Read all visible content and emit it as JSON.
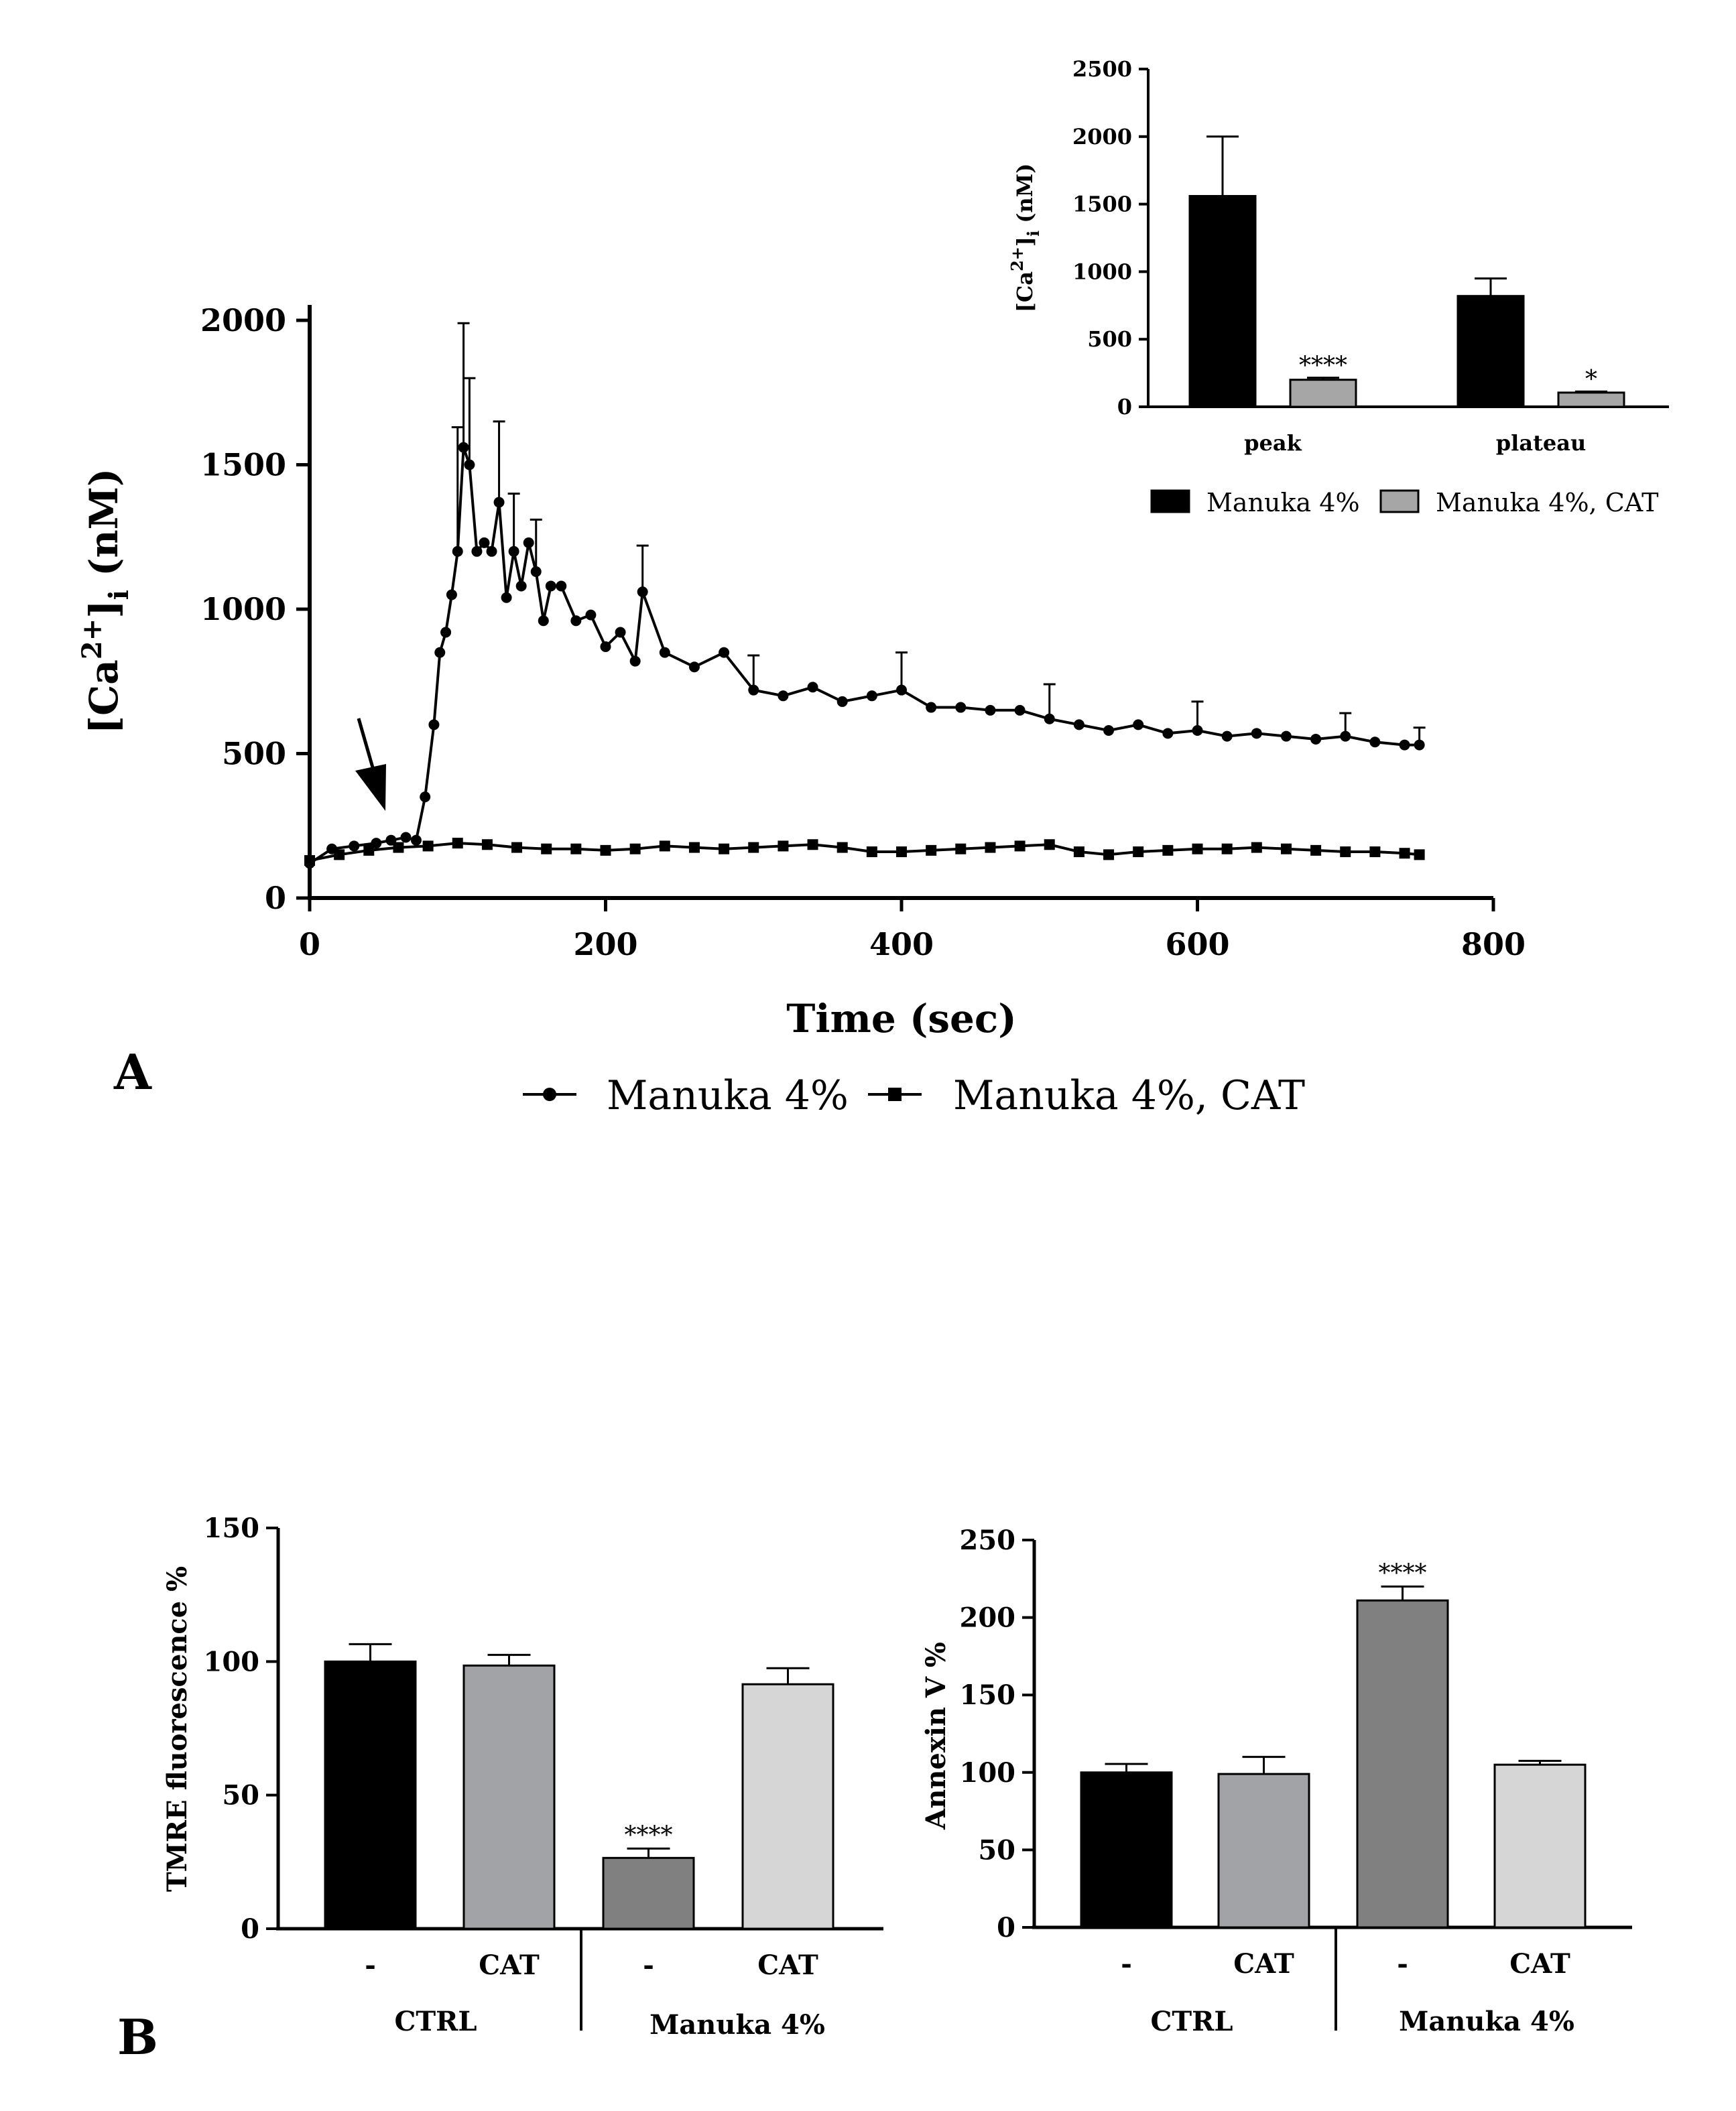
{
  "panels": {
    "a": "A",
    "b": "B"
  },
  "chart_data": [
    {
      "id": "a-main",
      "type": "line",
      "xlabel": "Time (sec)",
      "ylabel_main": "[Ca",
      "ylabel_sup": "2+",
      "ylabel_mid": "]",
      "ylabel_sub": "i",
      "ylabel_end": " (nM)",
      "xlim": [
        0,
        800
      ],
      "ylim": [
        0,
        2000
      ],
      "xticks": [
        "0",
        "200",
        "400",
        "600",
        "800"
      ],
      "yticks": [
        "0",
        "500",
        "1000",
        "1500",
        "2000"
      ],
      "series": [
        {
          "name": "Manuka 4%",
          "marker": "circle",
          "points": [
            [
              0,
              120
            ],
            [
              15,
              170
            ],
            [
              30,
              180
            ],
            [
              45,
              190
            ],
            [
              55,
              200
            ],
            [
              65,
              210
            ],
            [
              72,
              200
            ],
            [
              78,
              350
            ],
            [
              84,
              600
            ],
            [
              88,
              850
            ],
            [
              92,
              920
            ],
            [
              96,
              1050
            ],
            [
              100,
              1200
            ],
            [
              104,
              1560
            ],
            [
              108,
              1500
            ],
            [
              113,
              1200
            ],
            [
              118,
              1230
            ],
            [
              123,
              1200
            ],
            [
              128,
              1370
            ],
            [
              133,
              1040
            ],
            [
              138,
              1200
            ],
            [
              143,
              1080
            ],
            [
              148,
              1230
            ],
            [
              153,
              1130
            ],
            [
              158,
              960
            ],
            [
              163,
              1080
            ],
            [
              170,
              1080
            ],
            [
              180,
              960
            ],
            [
              190,
              980
            ],
            [
              200,
              870
            ],
            [
              210,
              920
            ],
            [
              220,
              820
            ],
            [
              225,
              1060
            ],
            [
              240,
              850
            ],
            [
              260,
              800
            ],
            [
              280,
              850
            ],
            [
              300,
              720
            ],
            [
              320,
              700
            ],
            [
              340,
              730
            ],
            [
              360,
              680
            ],
            [
              380,
              700
            ],
            [
              400,
              720
            ],
            [
              420,
              660
            ],
            [
              440,
              660
            ],
            [
              460,
              650
            ],
            [
              480,
              650
            ],
            [
              500,
              620
            ],
            [
              520,
              600
            ],
            [
              540,
              580
            ],
            [
              560,
              600
            ],
            [
              580,
              570
            ],
            [
              600,
              580
            ],
            [
              620,
              560
            ],
            [
              640,
              570
            ],
            [
              660,
              560
            ],
            [
              680,
              550
            ],
            [
              700,
              560
            ],
            [
              720,
              540
            ],
            [
              740,
              530
            ],
            [
              750,
              530
            ]
          ],
          "errors": [
            [
              100,
              430
            ],
            [
              104,
              430
            ],
            [
              108,
              300
            ],
            [
              128,
              280
            ],
            [
              138,
              200
            ],
            [
              153,
              180
            ],
            [
              225,
              160
            ],
            [
              300,
              120
            ],
            [
              400,
              130
            ],
            [
              500,
              120
            ],
            [
              600,
              100
            ],
            [
              700,
              80
            ],
            [
              750,
              60
            ]
          ]
        },
        {
          "name": "Manuka 4%, CAT",
          "marker": "square",
          "points": [
            [
              0,
              130
            ],
            [
              20,
              150
            ],
            [
              40,
              165
            ],
            [
              60,
              175
            ],
            [
              80,
              180
            ],
            [
              100,
              190
            ],
            [
              120,
              185
            ],
            [
              140,
              175
            ],
            [
              160,
              170
            ],
            [
              180,
              170
            ],
            [
              200,
              165
            ],
            [
              220,
              170
            ],
            [
              240,
              180
            ],
            [
              260,
              175
            ],
            [
              280,
              170
            ],
            [
              300,
              175
            ],
            [
              320,
              180
            ],
            [
              340,
              185
            ],
            [
              360,
              175
            ],
            [
              380,
              160
            ],
            [
              400,
              160
            ],
            [
              420,
              165
            ],
            [
              440,
              170
            ],
            [
              460,
              175
            ],
            [
              480,
              180
            ],
            [
              500,
              185
            ],
            [
              520,
              160
            ],
            [
              540,
              150
            ],
            [
              560,
              160
            ],
            [
              580,
              165
            ],
            [
              600,
              170
            ],
            [
              620,
              170
            ],
            [
              640,
              175
            ],
            [
              660,
              170
            ],
            [
              680,
              165
            ],
            [
              700,
              160
            ],
            [
              720,
              160
            ],
            [
              740,
              155
            ],
            [
              750,
              150
            ]
          ]
        }
      ],
      "annotation": "arrow at ~50 sec"
    },
    {
      "id": "a-inset",
      "type": "bar",
      "ylabel_main": "[Ca",
      "ylabel_sup": "2+",
      "ylabel_mid": "]",
      "ylabel_sub": "i",
      "ylabel_end": " (nM)",
      "ylim": [
        0,
        2500
      ],
      "yticks": [
        "0",
        "500",
        "1000",
        "1500",
        "2000",
        "2500"
      ],
      "categories": [
        "peak",
        "plateau"
      ],
      "series": [
        {
          "name": "Manuka 4%",
          "color": "#000000",
          "values": [
            1560,
            820
          ],
          "errors": [
            440,
            130
          ],
          "stars": [
            "",
            ""
          ]
        },
        {
          "name": "Manuka 4%, CAT",
          "color": "#a6a6a6",
          "values": [
            200,
            105
          ],
          "errors": [
            15,
            8
          ],
          "stars": [
            "****",
            "*"
          ]
        }
      ]
    },
    {
      "id": "b-left",
      "type": "bar",
      "ylabel": "TMRE fluorescence %",
      "ylim": [
        0,
        150
      ],
      "yticks": [
        "0",
        "50",
        "100",
        "150"
      ],
      "bars": [
        {
          "label": "-",
          "value": 100,
          "error": 6.5,
          "color": "#000000",
          "star": ""
        },
        {
          "label": "CAT",
          "value": 98.5,
          "error": 4,
          "color": "#a2a3a6",
          "star": ""
        },
        {
          "label": "-",
          "value": 26.5,
          "error": 3.5,
          "color": "#808080",
          "star": "****"
        },
        {
          "label": "CAT",
          "value": 91.5,
          "error": 6,
          "color": "#d6d6d6",
          "star": ""
        }
      ],
      "groups": [
        "CTRL",
        "Manuka 4%"
      ]
    },
    {
      "id": "b-right",
      "type": "bar",
      "ylabel": "Annexin V %",
      "ylim": [
        0,
        250
      ],
      "yticks": [
        "0",
        "50",
        "100",
        "150",
        "200",
        "250"
      ],
      "bars": [
        {
          "label": "-",
          "value": 100,
          "error": 5.5,
          "color": "#000000",
          "star": ""
        },
        {
          "label": "CAT",
          "value": 99,
          "error": 11,
          "color": "#a2a3a6",
          "star": ""
        },
        {
          "label": "-",
          "value": 211,
          "error": 9,
          "color": "#808080",
          "star": "****"
        },
        {
          "label": "CAT",
          "value": 105,
          "error": 2.5,
          "color": "#d6d6d6",
          "star": ""
        }
      ],
      "groups": [
        "CTRL",
        "Manuka 4%"
      ]
    }
  ]
}
